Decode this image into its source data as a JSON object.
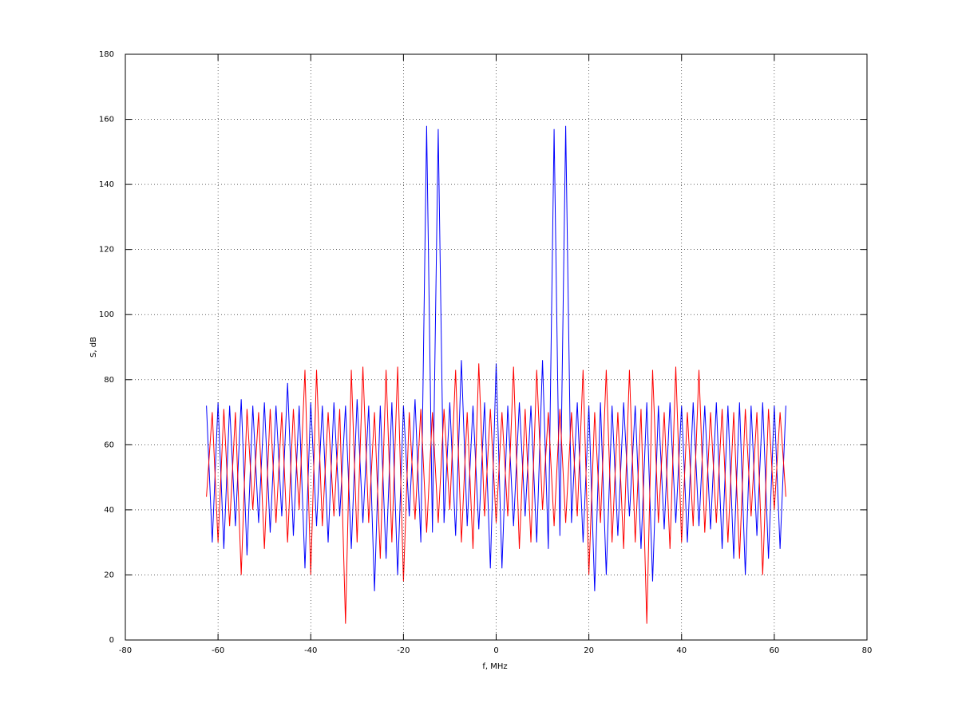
{
  "chart_data": {
    "type": "line",
    "xlabel": "f, MHz",
    "ylabel": "S, dB",
    "x": [
      -62.5,
      -61.25,
      -60,
      -58.75,
      -57.5,
      -56.25,
      -55,
      -53.75,
      -52.5,
      -51.25,
      -50,
      -48.75,
      -47.5,
      -46.25,
      -45,
      -43.75,
      -42.5,
      -41.25,
      -40,
      -38.75,
      -37.5,
      -36.25,
      -35,
      -33.75,
      -32.5,
      -31.25,
      -30,
      -28.75,
      -27.5,
      -26.25,
      -25,
      -23.75,
      -22.5,
      -21.25,
      -20,
      -18.75,
      -17.5,
      -16.25,
      -15,
      -13.75,
      -12.5,
      -11.25,
      -10,
      -8.75,
      -7.5,
      -6.25,
      -5,
      -3.75,
      -2.5,
      -1.25,
      0,
      1.25,
      2.5,
      3.75,
      5,
      6.25,
      7.5,
      8.75,
      10,
      11.25,
      12.5,
      13.75,
      15,
      16.25,
      17.5,
      18.75,
      20,
      21.25,
      22.5,
      23.75,
      25,
      26.25,
      27.5,
      28.75,
      30,
      31.25,
      32.5,
      33.75,
      35,
      36.25,
      37.5,
      38.75,
      40,
      41.25,
      42.5,
      43.75,
      45,
      46.25,
      47.5,
      48.75,
      50,
      51.25,
      52.5,
      53.75,
      55,
      56.25,
      57.5,
      58.75,
      60,
      61.25,
      62.5
    ],
    "series": [
      {
        "color": "#0000ff",
        "values": [
          72,
          30,
          73,
          28,
          72,
          35,
          74,
          26,
          72,
          36,
          73,
          33,
          72,
          38,
          79,
          32,
          72,
          22,
          73,
          35,
          72,
          30,
          73,
          38,
          72,
          28,
          74,
          36,
          72,
          15,
          72,
          25,
          73,
          20,
          72,
          38,
          74,
          30,
          158,
          33,
          157,
          36,
          73,
          32,
          86,
          35,
          72,
          34,
          73,
          22,
          85,
          22,
          72,
          35,
          73,
          38,
          72,
          30,
          86,
          28,
          157,
          32,
          158,
          36,
          73,
          30,
          72,
          15,
          73,
          20,
          72,
          32,
          73,
          38,
          72,
          28,
          73,
          18,
          72,
          34,
          73,
          36,
          72,
          30,
          73,
          35,
          72,
          34,
          73,
          28,
          72,
          25,
          73,
          20,
          72,
          32,
          73,
          25,
          72,
          28,
          72
        ]
      },
      {
        "color": "#ff0000",
        "values": [
          44,
          70,
          30,
          71,
          35,
          70,
          20,
          71,
          40,
          70,
          28,
          71,
          36,
          70,
          30,
          71,
          40,
          83,
          20,
          83,
          35,
          70,
          38,
          71,
          5,
          83,
          30,
          84,
          36,
          70,
          25,
          83,
          30,
          84,
          18,
          70,
          37,
          71,
          33,
          70,
          36,
          71,
          40,
          83,
          30,
          70,
          28,
          85,
          38,
          71,
          36,
          70,
          38,
          84,
          28,
          71,
          30,
          83,
          40,
          70,
          35,
          71,
          36,
          70,
          38,
          83,
          20,
          70,
          36,
          83,
          30,
          70,
          28,
          83,
          30,
          71,
          5,
          83,
          36,
          70,
          28,
          84,
          30,
          70,
          35,
          83,
          33,
          70,
          36,
          71,
          30,
          70,
          25,
          71,
          38,
          70,
          20,
          71,
          40,
          70,
          44
        ]
      }
    ],
    "xlim": [
      -80,
      80
    ],
    "ylim": [
      0,
      180
    ],
    "xticks": [
      -80,
      -60,
      -40,
      -20,
      0,
      20,
      40,
      60,
      80
    ],
    "yticks": [
      0,
      20,
      40,
      60,
      80,
      100,
      120,
      140,
      160,
      180
    ],
    "grid": true
  }
}
